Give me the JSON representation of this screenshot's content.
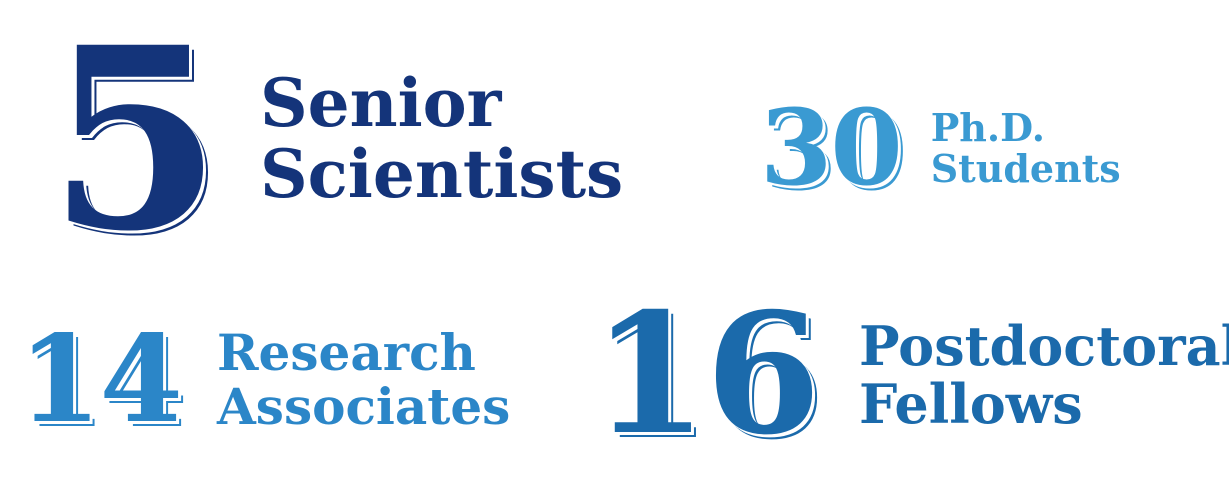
{
  "colors": {
    "dark_navy": "#14347a",
    "light_blue": "#3a9ad2",
    "medium_blue": "#2b86c8",
    "deep_blue": "#1b6aab"
  },
  "stats": [
    {
      "number": "5",
      "label_line1": "Senior",
      "label_line2": "Scientists",
      "color": "#14347a"
    },
    {
      "number": "30",
      "label_line1": "Ph.D.",
      "label_line2": "Students",
      "color": "#3a9ad2"
    },
    {
      "number": "14",
      "label_line1": "Research",
      "label_line2": "Associates",
      "color": "#2b86c8"
    },
    {
      "number": "16",
      "label_line1": "Postdoctoral",
      "label_line2": "Fellows",
      "color": "#1b6aab"
    }
  ]
}
